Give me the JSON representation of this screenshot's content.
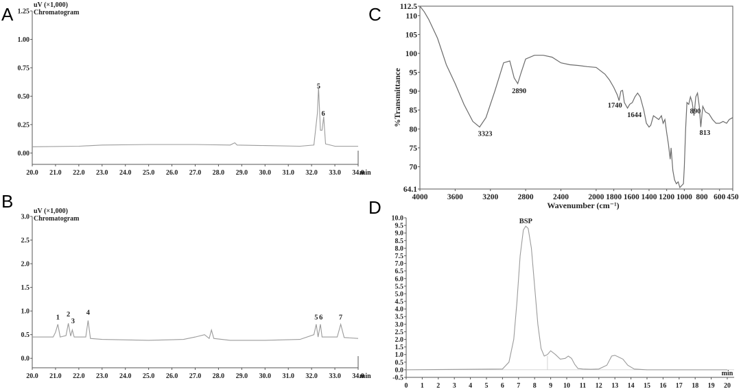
{
  "chart_data": [
    {
      "panel": "A",
      "type": "line",
      "header": [
        "uV (×1,000)",
        "Chromatogram"
      ],
      "x_unit": "min",
      "xlim": [
        20.0,
        34.0
      ],
      "ylim": [
        -0.1,
        1.25
      ],
      "x_ticks": [
        20.0,
        21.0,
        22.0,
        23.0,
        24.0,
        25.0,
        26.0,
        27.0,
        28.0,
        29.0,
        30.0,
        31.0,
        32.0,
        33.0,
        34.0
      ],
      "x_tick_labels": [
        "20.0",
        "21.0",
        "22.0",
        "23.0",
        "24.0",
        "25.0",
        "26.0",
        "27.0",
        "28.0",
        "29.0",
        "30.0",
        "31.0",
        "32.0",
        "33.0",
        "34.0"
      ],
      "y_ticks": [
        0.0,
        0.25,
        0.5,
        0.75,
        1.0,
        1.25
      ],
      "y_tick_labels": [
        "0.00",
        "0.25",
        "0.50",
        "0.75",
        "1.00",
        "1.25"
      ],
      "peaks": [
        {
          "label": "5",
          "x": 32.3,
          "y": 0.55
        },
        {
          "label": "6",
          "x": 32.5,
          "y": 0.31
        }
      ],
      "series": [
        {
          "x": [
            20.0,
            22.0,
            23.0,
            25.0,
            27.0,
            28.5,
            28.7,
            28.8,
            30.0,
            31.5,
            32.1,
            32.25,
            32.3,
            32.38,
            32.45,
            32.52,
            32.6,
            33.0,
            34.0
          ],
          "y": [
            0.055,
            0.06,
            0.07,
            0.075,
            0.075,
            0.07,
            0.09,
            0.07,
            0.065,
            0.06,
            0.07,
            0.35,
            0.58,
            0.2,
            0.2,
            0.32,
            0.08,
            0.06,
            0.06
          ]
        }
      ]
    },
    {
      "panel": "B",
      "type": "line",
      "header": [
        "uV (×1,000)",
        "Chromatogram"
      ],
      "x_unit": "min",
      "xlim": [
        20.0,
        34.0
      ],
      "ylim": [
        -0.2,
        3.0
      ],
      "x_ticks": [
        20.0,
        21.0,
        22.0,
        23.0,
        24.0,
        25.0,
        26.0,
        27.0,
        28.0,
        29.0,
        30.0,
        31.0,
        32.0,
        33.0,
        34.0
      ],
      "x_tick_labels": [
        "20.0",
        "21.0",
        "22.0",
        "23.0",
        "24.0",
        "25.0",
        "26.0",
        "27.0",
        "28.0",
        "29.0",
        "30.0",
        "31.0",
        "32.0",
        "33.0",
        "34.0"
      ],
      "y_ticks": [
        0.0,
        0.5,
        1.0,
        1.5,
        2.0,
        2.5,
        3.0
      ],
      "y_tick_labels": [
        "0.0",
        "0.5",
        "1.0",
        "1.5",
        "2.0",
        "2.5",
        "3.0"
      ],
      "peaks": [
        {
          "label": "1",
          "x": 21.1,
          "y": 0.78
        },
        {
          "label": "2",
          "x": 21.55,
          "y": 0.84
        },
        {
          "label": "3",
          "x": 21.75,
          "y": 0.7
        },
        {
          "label": "4",
          "x": 22.4,
          "y": 0.88
        },
        {
          "label": "5",
          "x": 32.2,
          "y": 0.78
        },
        {
          "label": "6",
          "x": 32.4,
          "y": 0.78
        },
        {
          "label": "7",
          "x": 33.25,
          "y": 0.78
        }
      ],
      "series": [
        {
          "x": [
            20.0,
            20.9,
            21.0,
            21.1,
            21.2,
            21.45,
            21.55,
            21.65,
            21.72,
            21.8,
            22.3,
            22.4,
            22.5,
            23.0,
            25.0,
            26.5,
            27.0,
            27.4,
            27.6,
            27.7,
            27.8,
            28.5,
            30.0,
            31.5,
            32.1,
            32.2,
            32.28,
            32.38,
            32.45,
            33.1,
            33.25,
            33.4,
            34.0
          ],
          "y": [
            0.45,
            0.45,
            0.55,
            0.72,
            0.45,
            0.48,
            0.74,
            0.47,
            0.6,
            0.45,
            0.45,
            0.8,
            0.42,
            0.4,
            0.38,
            0.4,
            0.45,
            0.5,
            0.42,
            0.6,
            0.42,
            0.38,
            0.38,
            0.4,
            0.5,
            0.72,
            0.45,
            0.72,
            0.45,
            0.45,
            0.72,
            0.44,
            0.42
          ]
        }
      ]
    },
    {
      "panel": "C",
      "type": "line",
      "xlabel": "Wavenumber (cm⁻¹)",
      "ylabel": "%Transmittance",
      "xlim": [
        4000,
        450
      ],
      "ylim": [
        64.1,
        112.5
      ],
      "x_ticks": [
        4000,
        3600,
        3200,
        2800,
        2400,
        2000,
        1800,
        1600,
        1400,
        1200,
        1000,
        800,
        600,
        450
      ],
      "x_tick_labels": [
        "4000",
        "3600",
        "3200",
        "2800",
        "2400",
        "2000",
        "1800",
        "1600",
        "1400",
        "1200",
        "1000",
        "800",
        "600",
        "450"
      ],
      "y_ticks": [
        64.1,
        70,
        75,
        80,
        85,
        90,
        95,
        100,
        105,
        110,
        112.5
      ],
      "y_tick_labels": [
        "64.1",
        "70",
        "75",
        "80",
        "85",
        "90",
        "95",
        "100",
        "105",
        "110",
        "112.5"
      ],
      "peaks": [
        {
          "label": "3323",
          "x": 3323,
          "y": 80.5
        },
        {
          "label": "2890",
          "x": 2890,
          "y": 92
        },
        {
          "label": "1740",
          "x": 1740,
          "y": 87.5
        },
        {
          "label": "1644",
          "x": 1644,
          "y": 85.5
        },
        {
          "label": "890",
          "x": 890,
          "y": 83
        },
        {
          "label": "813",
          "x": 813,
          "y": 81
        }
      ],
      "series": [
        {
          "x": [
            4000,
            3950,
            3900,
            3850,
            3800,
            3700,
            3600,
            3500,
            3400,
            3323,
            3250,
            3150,
            3050,
            2980,
            2930,
            2890,
            2850,
            2800,
            2700,
            2600,
            2500,
            2400,
            2300,
            2200,
            2100,
            2000,
            1900,
            1850,
            1800,
            1760,
            1740,
            1720,
            1700,
            1680,
            1644,
            1620,
            1590,
            1560,
            1530,
            1500,
            1460,
            1430,
            1400,
            1380,
            1350,
            1320,
            1290,
            1260,
            1240,
            1220,
            1200,
            1180,
            1160,
            1150,
            1130,
            1110,
            1090,
            1070,
            1050,
            1030,
            1010,
            1000,
            985,
            970,
            950,
            930,
            910,
            890,
            870,
            850,
            830,
            813,
            790,
            760,
            720,
            680,
            640,
            600,
            560,
            520,
            490,
            450
          ],
          "y": [
            112.5,
            111,
            109,
            106.5,
            104,
            97,
            92,
            86.5,
            82,
            80.5,
            83,
            90,
            97.5,
            98,
            93.5,
            92,
            95,
            98.5,
            99.5,
            99.5,
            99,
            97.5,
            97,
            96.8,
            96.5,
            96.3,
            94.5,
            93,
            91,
            89,
            87.5,
            90,
            90.2,
            87,
            85.5,
            86.5,
            87,
            88.5,
            89.5,
            88.5,
            85,
            81.5,
            80.5,
            81,
            83.5,
            83,
            82.5,
            83.5,
            81.5,
            82.5,
            79,
            76,
            72,
            75,
            69,
            66.5,
            65.5,
            66,
            64.5,
            65,
            65.5,
            70,
            80,
            87,
            86.5,
            88.5,
            87,
            83.5,
            88.5,
            89.5,
            86,
            80.5,
            86,
            84.5,
            84,
            82.5,
            81.5,
            81.5,
            82,
            81.5,
            82.5,
            83
          ]
        }
      ]
    },
    {
      "panel": "D",
      "type": "line",
      "x_unit": "min",
      "xlim": [
        0,
        20
      ],
      "ylim": [
        -0.5,
        10.0
      ],
      "x_ticks": [
        0,
        1,
        2,
        3,
        4,
        5,
        6,
        7,
        8,
        9,
        10,
        11,
        12,
        13,
        14,
        15,
        16,
        17,
        18,
        19,
        20
      ],
      "x_tick_labels": [
        "0",
        "1",
        "2",
        "3",
        "4",
        "5",
        "6",
        "7",
        "8",
        "9",
        "10",
        "11",
        "12",
        "13",
        "14",
        "15",
        "16",
        "17",
        "18",
        "19",
        "20"
      ],
      "y_ticks": [
        -0.5,
        0.0,
        0.5,
        1.0,
        1.5,
        2.0,
        2.5,
        3.0,
        3.5,
        4.0,
        4.5,
        5.0,
        5.5,
        6.0,
        6.5,
        7.0,
        7.5,
        8.0,
        8.5,
        9.0,
        9.5,
        10.0
      ],
      "y_tick_labels": [
        "-0.5",
        "0.0",
        "0.5",
        "1.0",
        "1.5",
        "2.0",
        "2.5",
        "3.0",
        "3.5",
        "4.0",
        "4.5",
        "5.0",
        "5.5",
        "6.0",
        "6.5",
        "7.0",
        "7.5",
        "8.0",
        "8.5",
        "9.0",
        "9.5",
        "10.0"
      ],
      "peaks": [
        {
          "label": "BSP",
          "x": 7.45,
          "y": 9.45
        }
      ],
      "series": [
        {
          "x": [
            0,
            6.0,
            6.4,
            6.7,
            6.9,
            7.1,
            7.3,
            7.45,
            7.6,
            7.8,
            8.0,
            8.2,
            8.4,
            8.6,
            8.8,
            9.0,
            9.3,
            9.6,
            9.9,
            10.1,
            10.3,
            10.5,
            10.7,
            11.0,
            11.5,
            12.0,
            12.5,
            12.8,
            13.0,
            13.2,
            13.5,
            13.8,
            14.2,
            15.0,
            20.0
          ],
          "y": [
            0.0,
            0.05,
            0.5,
            2.0,
            4.5,
            7.5,
            9.2,
            9.45,
            9.3,
            8.0,
            5.5,
            3.0,
            1.4,
            0.9,
            1.0,
            1.25,
            1.0,
            0.7,
            0.75,
            0.9,
            0.75,
            0.35,
            0.08,
            0.05,
            0.03,
            0.05,
            0.3,
            0.9,
            0.95,
            0.85,
            0.7,
            0.3,
            0.05,
            0.0,
            0.0
          ]
        }
      ]
    }
  ],
  "labels": {
    "panel_a": "A",
    "panel_b": "B",
    "panel_c": "C",
    "panel_d": "D"
  }
}
